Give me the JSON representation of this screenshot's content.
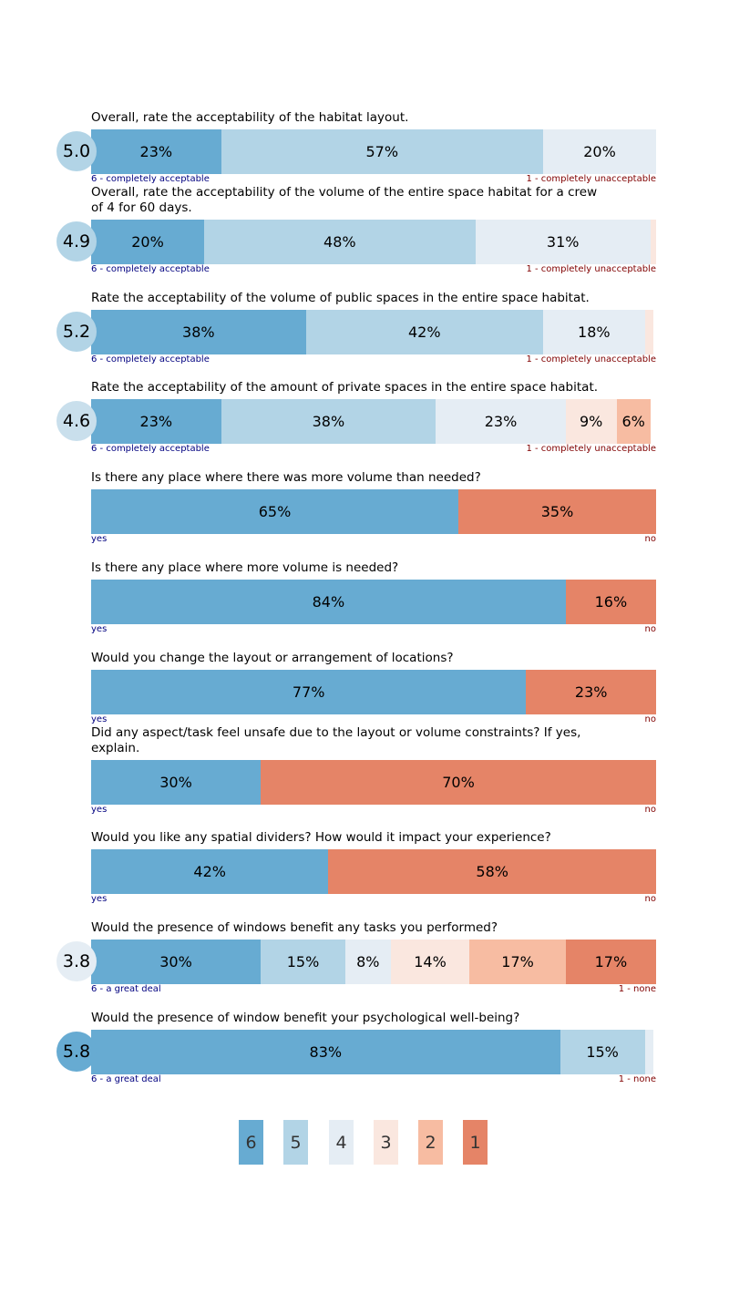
{
  "colors": {
    "6": "#67abd2",
    "5": "#b2d4e6",
    "4": "#e5edf4",
    "3": "#fae7df",
    "2": "#f7bca2",
    "1": "#e58467"
  },
  "chart_data": {
    "type": "bar",
    "orientation": "horizontal-stacked-100",
    "questions": [
      {
        "title": "Overall, rate the acceptability of the habitat layout.",
        "score": "5.0",
        "left_label": "6 - completely acceptable",
        "right_label": "1 - completely unacceptable",
        "segments": [
          {
            "level": "6",
            "value": 23,
            "label": "23%"
          },
          {
            "level": "5",
            "value": 57,
            "label": "57%"
          },
          {
            "level": "4",
            "value": 20,
            "label": "20%"
          }
        ]
      },
      {
        "title": "Overall, rate the acceptability of the volume of the entire space habitat for a crew of 4 for 60 days.",
        "score": "4.9",
        "left_label": "6 - completely acceptable",
        "right_label": "1 - completely unacceptable",
        "segments": [
          {
            "level": "6",
            "value": 20,
            "label": "20%"
          },
          {
            "level": "5",
            "value": 48,
            "label": "48%"
          },
          {
            "level": "4",
            "value": 31,
            "label": "31%"
          },
          {
            "level": "3",
            "value": 1.5,
            "label": ""
          }
        ]
      },
      {
        "title": "Rate the acceptability of the volume of public spaces in the entire space habitat.",
        "score": "5.2",
        "left_label": "6 - completely acceptable",
        "right_label": "1 - completely unacceptable",
        "segments": [
          {
            "level": "6",
            "value": 38,
            "label": "38%"
          },
          {
            "level": "5",
            "value": 42,
            "label": "42%"
          },
          {
            "level": "4",
            "value": 18,
            "label": "18%"
          },
          {
            "level": "3",
            "value": 1.5,
            "label": ""
          }
        ]
      },
      {
        "title": "Rate the acceptability of the amount of private spaces in the entire space habitat.",
        "score": "4.6",
        "left_label": "6 - completely acceptable",
        "right_label": "1 - completely unacceptable",
        "segments": [
          {
            "level": "6",
            "value": 23,
            "label": "23%"
          },
          {
            "level": "5",
            "value": 38,
            "label": "38%"
          },
          {
            "level": "4",
            "value": 23,
            "label": "23%"
          },
          {
            "level": "3",
            "value": 9,
            "label": "9%"
          },
          {
            "level": "2",
            "value": 6,
            "label": "6%"
          }
        ]
      },
      {
        "title": "Is there any place where there was more volume than needed?",
        "score": "",
        "left_label": "yes",
        "right_label": "no",
        "segments": [
          {
            "level": "6",
            "value": 65,
            "label": "65%"
          },
          {
            "level": "1",
            "value": 35,
            "label": "35%"
          }
        ]
      },
      {
        "title": "Is there any place where more volume is needed?",
        "score": "",
        "left_label": "yes",
        "right_label": "no",
        "segments": [
          {
            "level": "6",
            "value": 84,
            "label": "84%"
          },
          {
            "level": "1",
            "value": 16,
            "label": "16%"
          }
        ]
      },
      {
        "title": "Would you change the layout or arrangement of locations?",
        "score": "",
        "left_label": "yes",
        "right_label": "no",
        "segments": [
          {
            "level": "6",
            "value": 77,
            "label": "77%"
          },
          {
            "level": "1",
            "value": 23,
            "label": "23%"
          }
        ]
      },
      {
        "title": "Did any aspect/task feel unsafe due to the layout or volume constraints? If yes, explain.",
        "score": "",
        "left_label": "yes",
        "right_label": "no",
        "segments": [
          {
            "level": "6",
            "value": 30,
            "label": "30%"
          },
          {
            "level": "1",
            "value": 70,
            "label": "70%"
          }
        ]
      },
      {
        "title": "Would you like any spatial dividers? How would it impact your experience?",
        "score": "",
        "left_label": "yes",
        "right_label": "no",
        "segments": [
          {
            "level": "6",
            "value": 42,
            "label": "42%"
          },
          {
            "level": "1",
            "value": 58,
            "label": "58%"
          }
        ]
      },
      {
        "title": "Would the presence of windows benefit any tasks you performed?",
        "score": "3.8",
        "left_label": "6 - a great deal",
        "right_label": "1 - none",
        "segments": [
          {
            "level": "6",
            "value": 30,
            "label": "30%"
          },
          {
            "level": "5",
            "value": 15,
            "label": "15%"
          },
          {
            "level": "4",
            "value": 8,
            "label": "8%"
          },
          {
            "level": "3",
            "value": 14,
            "label": "14%"
          },
          {
            "level": "2",
            "value": 17,
            "label": "17%"
          },
          {
            "level": "1",
            "value": 17,
            "label": "17%"
          }
        ]
      },
      {
        "title": "Would the presence of window benefit your psychological well-being?",
        "score": "5.8",
        "left_label": "6 - a great deal",
        "right_label": "1 - none",
        "segments": [
          {
            "level": "6",
            "value": 83,
            "label": "83%"
          },
          {
            "level": "5",
            "value": 15,
            "label": "15%"
          },
          {
            "level": "4",
            "value": 1.5,
            "label": ""
          }
        ]
      }
    ],
    "legend": [
      "6",
      "5",
      "4",
      "3",
      "2",
      "1"
    ]
  }
}
